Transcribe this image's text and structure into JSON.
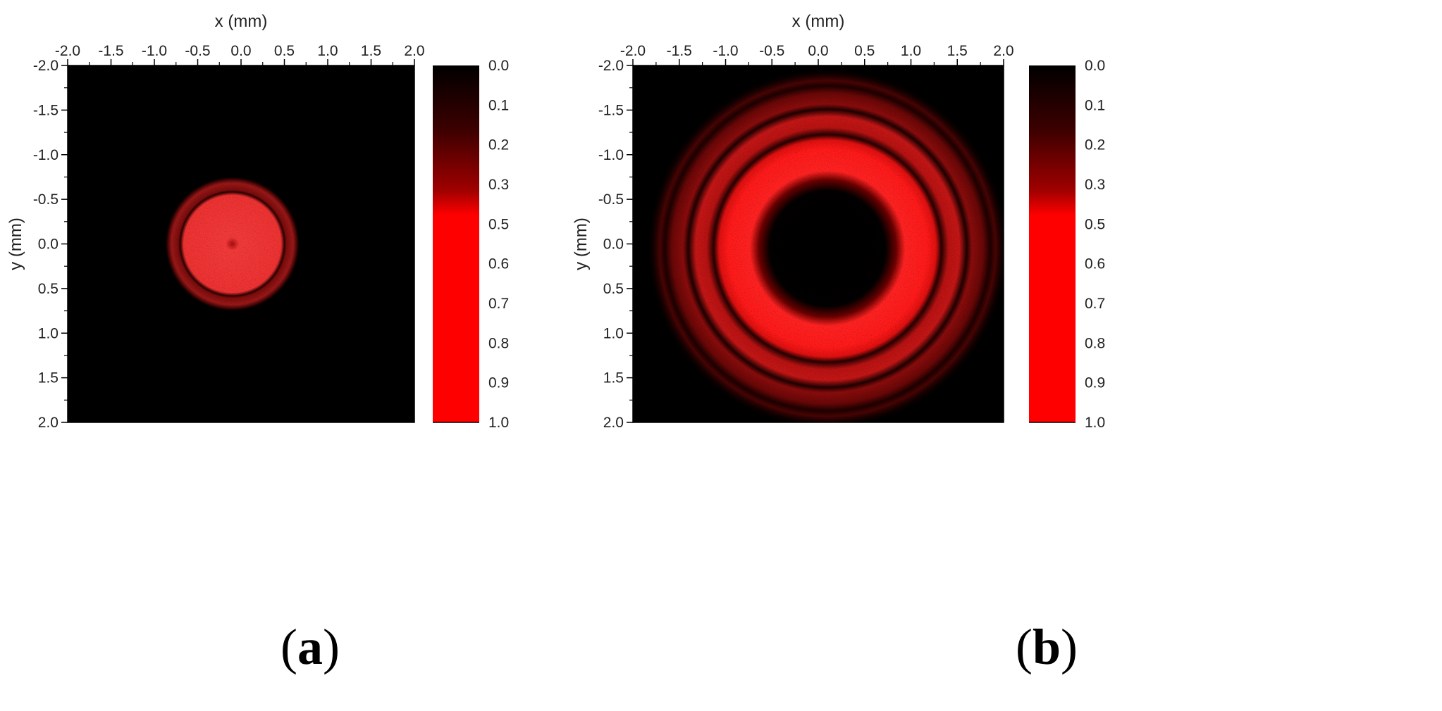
{
  "chart_data": [
    {
      "type": "heatmap",
      "panel_label": "a",
      "xlabel": "x (mm)",
      "ylabel": "y (mm)",
      "xlim": [
        -2.0,
        2.0
      ],
      "ylim": [
        -2.0,
        2.0
      ],
      "y_axis_inverted": true,
      "x_ticks": [
        "-2.0",
        "-1.5",
        "-1.0",
        "-0.5",
        "0.0",
        "0.5",
        "1.0",
        "1.5",
        "2.0"
      ],
      "y_ticks": [
        "-2.0",
        "-1.5",
        "-1.0",
        "-0.5",
        "0.0",
        "0.5",
        "1.0",
        "1.5",
        "2.0"
      ],
      "colorbar": {
        "ticks": [
          "0.0",
          "0.1",
          "0.2",
          "0.3",
          "0.5",
          "0.6",
          "0.7",
          "0.8",
          "0.9",
          "1.0"
        ],
        "colors": [
          "#000000",
          "#ff0000"
        ]
      },
      "intensity_pattern": {
        "shape": "filled disk with thin outer ring",
        "center": [
          -0.1,
          0.0
        ],
        "core_radius": 0.55,
        "ring_radius": 0.7,
        "peak_intensity": 0.8
      }
    },
    {
      "type": "heatmap",
      "panel_label": "b",
      "xlabel": "x (mm)",
      "ylabel": "y (mm)",
      "xlim": [
        -2.0,
        2.0
      ],
      "ylim": [
        -2.0,
        2.0
      ],
      "y_axis_inverted": true,
      "x_ticks": [
        "-2.0",
        "-1.5",
        "-1.0",
        "-0.5",
        "0.0",
        "0.5",
        "1.0",
        "1.5",
        "2.0"
      ],
      "y_ticks": [
        "-2.0",
        "-1.5",
        "-1.0",
        "-0.5",
        "0.0",
        "0.5",
        "1.0",
        "1.5",
        "2.0"
      ],
      "colorbar": {
        "ticks": [
          "0.0",
          "0.1",
          "0.2",
          "0.3",
          "0.5",
          "0.6",
          "0.7",
          "0.8",
          "0.9",
          "1.0"
        ],
        "colors": [
          "#000000",
          "#ff0000"
        ]
      },
      "intensity_pattern": {
        "shape": "dark-core ring with outer diffraction rings",
        "center": [
          0.1,
          0.05
        ],
        "dark_core_radius": 0.5,
        "main_ring_radius": 0.85,
        "outer_ring_radii": [
          1.2,
          1.5
        ],
        "peak_intensity": 1.0
      }
    }
  ]
}
